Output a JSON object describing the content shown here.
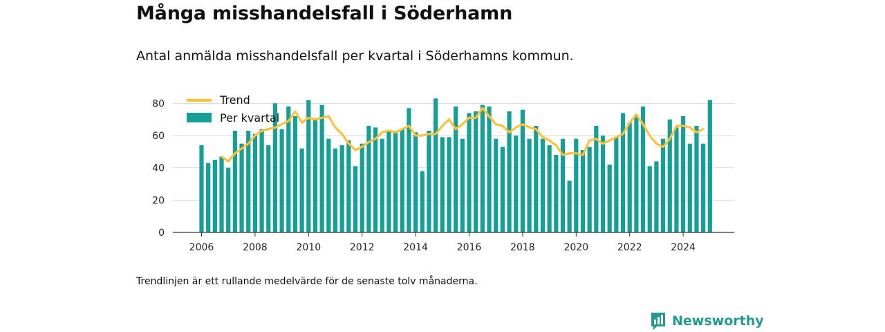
{
  "title": "Många misshandelsfall i Söderhamn",
  "subtitle": "Antal anmälda misshandelsfall per kvartal i Söderhamns kommun.",
  "footnote": "Trendlinjen är ett rullande medelvärde för de senaste tolv månaderna.",
  "brand": "Newsworthy",
  "colors": {
    "bars": "#14a096",
    "trend": "#ffc03a",
    "grid": "#d9d9d9",
    "axis": "#333333",
    "brand": "#1f9b8f"
  },
  "chart_data": {
    "type": "bar",
    "start_year": 2006,
    "quarters_per_year": 4,
    "ylim": [
      0,
      90
    ],
    "yticks": [
      0,
      20,
      40,
      60,
      80
    ],
    "xticks": [
      "2006",
      "2008",
      "2010",
      "2012",
      "2014",
      "2016",
      "2018",
      "2020",
      "2022",
      "2024"
    ],
    "series": [
      {
        "name": "Per kvartal",
        "type": "bar",
        "values": [
          54,
          43,
          45,
          47,
          40,
          63,
          55,
          63,
          61,
          64,
          54,
          80,
          64,
          78,
          72,
          52,
          82,
          70,
          79,
          58,
          52,
          54,
          57,
          41,
          55,
          66,
          65,
          58,
          63,
          63,
          64,
          77,
          62,
          38,
          63,
          83,
          59,
          59,
          78,
          58,
          74,
          75,
          79,
          78,
          58,
          53,
          75,
          60,
          76,
          58,
          66,
          58,
          54,
          48,
          58,
          32,
          58,
          51,
          53,
          66,
          60,
          42,
          59,
          74,
          68,
          73,
          78,
          41,
          44,
          58,
          70,
          65,
          72,
          55,
          66,
          55,
          82
        ]
      },
      {
        "name": "Trend",
        "type": "line",
        "start_index": 3,
        "values": [
          47,
          44,
          49,
          52,
          55,
          60,
          63,
          64,
          65,
          67,
          69,
          75,
          68,
          71,
          70,
          71,
          72,
          65,
          61,
          55,
          51,
          53,
          56,
          58,
          62,
          63,
          62,
          64,
          66,
          60,
          60,
          61,
          61,
          66,
          70,
          64,
          67,
          71,
          71,
          77,
          72,
          67,
          66,
          62,
          65,
          67,
          65,
          64,
          59,
          57,
          54,
          48,
          49,
          49,
          48,
          57,
          58,
          55,
          57,
          59,
          61,
          68,
          73,
          67,
          60,
          55,
          53,
          58,
          66,
          66,
          65,
          62,
          64
        ]
      }
    ],
    "legend": [
      "Trend",
      "Per kvartal"
    ],
    "legend_position": "top-left",
    "grid": true
  }
}
